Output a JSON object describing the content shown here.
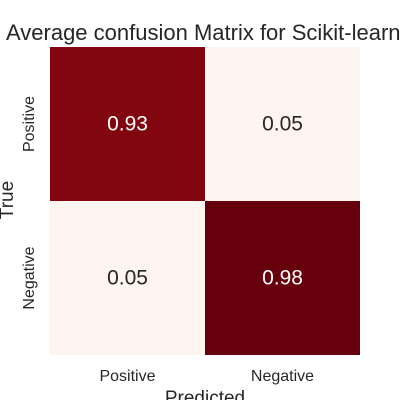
{
  "chart_data": {
    "type": "heatmap",
    "title": "Average confusion Matrix for Scikit-learn",
    "xlabel": "Predicted",
    "ylabel": "True",
    "x_categories": [
      "Positive",
      "Negative"
    ],
    "y_categories": [
      "Positive",
      "Negative"
    ],
    "values": [
      [
        0.93,
        0.05
      ],
      [
        0.05,
        0.98
      ]
    ],
    "value_labels": [
      [
        "0.93",
        "0.05"
      ],
      [
        "0.05",
        "0.98"
      ]
    ],
    "colormap": "Reds",
    "color_low": "#fff5f0",
    "color_high": "#67000d",
    "text_color_dark": "#262626",
    "text_color_light": "#ffffff",
    "grid": false,
    "colorbar": false
  }
}
